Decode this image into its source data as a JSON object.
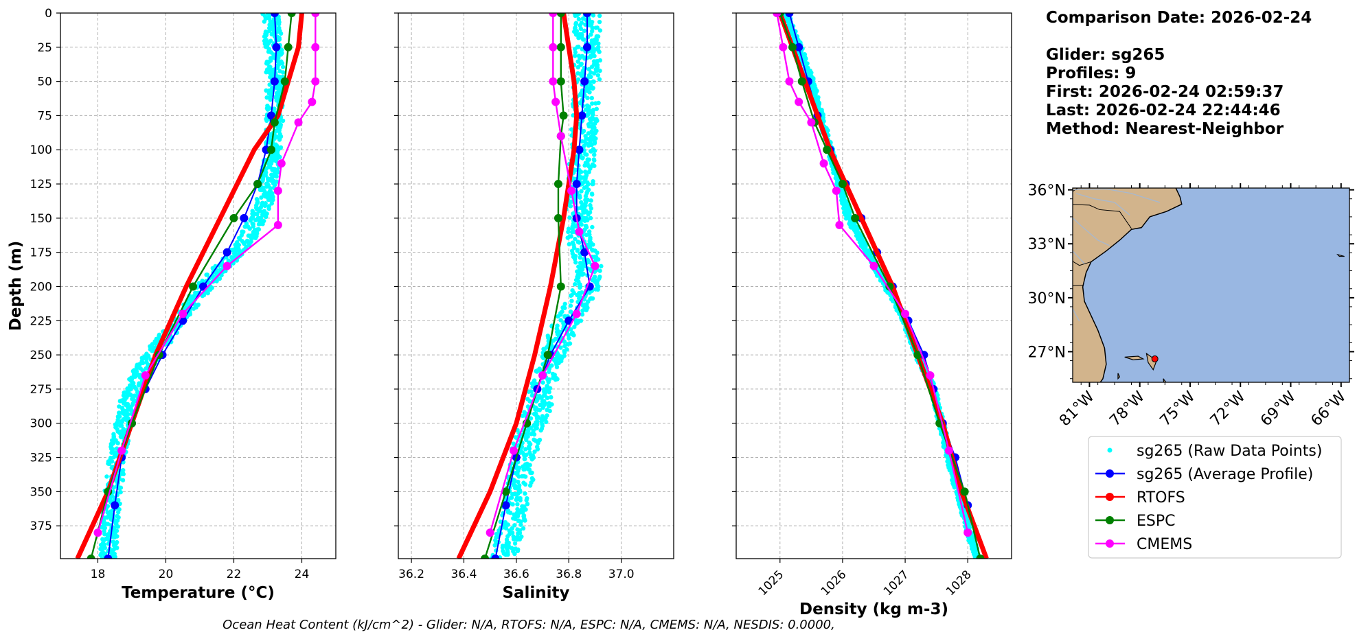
{
  "header": {
    "comparison_date": "Comparison Date: 2026-02-24",
    "glider": "Glider: sg265",
    "profiles": "Profiles: 9",
    "first": "First: 2026-02-24 02:59:37",
    "last": "Last: 2026-02-24 22:44:46",
    "method": "Method: Nearest-Neighbor"
  },
  "footer_text": "Ocean Heat Content (kJ/cm^2) - Glider: N/A,  RTOFS: N/A,  ESPC: N/A,  CMEMS: N/A,  NESDIS: 0.0000,",
  "colors": {
    "raw": "#00ffff",
    "average": "#0000ff",
    "rtofs": "#ff0000",
    "espc": "#008000",
    "cmems": "#ff00ff",
    "land": "#d2b48c",
    "ocean": "#99b7e2"
  },
  "chart_data": [
    {
      "type": "line",
      "xlabel": "Temperature (°C)",
      "ylabel": "Depth (m)",
      "xlim": [
        16.9,
        25.0
      ],
      "ylim": [
        399,
        0
      ],
      "xticks": [
        18,
        20,
        22,
        24
      ],
      "yticks": [
        0,
        25,
        50,
        75,
        100,
        125,
        150,
        175,
        200,
        225,
        250,
        275,
        300,
        325,
        350,
        375
      ],
      "grid": true,
      "series": [
        {
          "name": "sg265 (Raw Data Points)",
          "style": "raw",
          "x": [
            23.1,
            23.2,
            23.2,
            23.1,
            22.9,
            22.4,
            21.9,
            21.3,
            20.2,
            19.3,
            18.8,
            18.6,
            18.4,
            18.3
          ],
          "y": [
            0,
            40,
            80,
            110,
            140,
            165,
            180,
            195,
            230,
            260,
            290,
            320,
            360,
            399
          ],
          "spread": 0.25
        },
        {
          "name": "sg265 (Average Profile)",
          "style": "average",
          "x": [
            23.2,
            23.25,
            23.2,
            23.1,
            22.95,
            22.7,
            22.3,
            21.8,
            21.1,
            20.5,
            19.9,
            19.4,
            19.0,
            18.7,
            18.5,
            18.3
          ],
          "y": [
            0,
            25,
            50,
            75,
            100,
            125,
            150,
            175,
            200,
            225,
            250,
            275,
            300,
            325,
            360,
            399
          ]
        },
        {
          "name": "RTOFS",
          "style": "rtofs",
          "x": [
            24.0,
            23.9,
            23.6,
            23.3,
            22.6,
            21.6,
            20.6,
            19.7,
            19.0,
            18.3,
            17.4
          ],
          "y": [
            0,
            25,
            50,
            75,
            100,
            150,
            200,
            250,
            300,
            350,
            399
          ]
        },
        {
          "name": "ESPC",
          "style": "espc",
          "x": [
            23.7,
            23.6,
            23.5,
            23.2,
            23.1,
            22.7,
            22.0,
            20.8,
            19.8,
            19.0,
            18.3,
            17.8
          ],
          "y": [
            0,
            25,
            50,
            80,
            100,
            125,
            150,
            200,
            250,
            300,
            350,
            399
          ]
        },
        {
          "name": "CMEMS",
          "style": "cmems",
          "x": [
            24.4,
            24.4,
            24.4,
            24.3,
            23.9,
            23.4,
            23.3,
            23.3,
            21.8,
            20.5,
            19.4,
            18.7,
            18.0
          ],
          "y": [
            0,
            25,
            50,
            65,
            80,
            110,
            130,
            155,
            185,
            220,
            265,
            320,
            380
          ]
        }
      ]
    },
    {
      "type": "line",
      "xlabel": "Salinity",
      "ylim": [
        399,
        0
      ],
      "xlim": [
        36.15,
        37.2
      ],
      "xticks": [
        "36.2",
        "36.4",
        "36.6",
        "36.8",
        "37.0"
      ],
      "grid": true,
      "series": [
        {
          "name": "sg265 (Raw Data Points)",
          "style": "raw",
          "x": [
            36.87,
            36.87,
            36.86,
            36.85,
            36.84,
            36.84,
            36.88,
            36.86,
            36.78,
            36.72,
            36.68,
            36.63,
            36.6,
            36.55
          ],
          "y": [
            0,
            40,
            80,
            110,
            140,
            165,
            185,
            205,
            230,
            260,
            290,
            320,
            360,
            399
          ],
          "spread": 0.05
        },
        {
          "name": "sg265 (Average Profile)",
          "style": "average",
          "x": [
            36.87,
            36.87,
            36.86,
            36.85,
            36.84,
            36.83,
            36.83,
            36.86,
            36.88,
            36.8,
            36.73,
            36.68,
            36.64,
            36.6,
            36.56,
            36.52
          ],
          "y": [
            0,
            25,
            50,
            75,
            100,
            125,
            150,
            175,
            200,
            225,
            250,
            275,
            300,
            325,
            360,
            399
          ]
        },
        {
          "name": "RTOFS",
          "style": "rtofs",
          "x": [
            36.78,
            36.8,
            36.82,
            36.83,
            36.82,
            36.78,
            36.73,
            36.67,
            36.6,
            36.5,
            36.38
          ],
          "y": [
            0,
            25,
            50,
            75,
            100,
            150,
            200,
            250,
            300,
            350,
            399
          ]
        },
        {
          "name": "ESPC",
          "style": "espc",
          "x": [
            36.77,
            36.77,
            36.77,
            36.78,
            36.77,
            36.76,
            36.76,
            36.77,
            36.72,
            36.64,
            36.56,
            36.48
          ],
          "y": [
            0,
            25,
            50,
            75,
            90,
            125,
            150,
            200,
            250,
            300,
            350,
            399
          ]
        },
        {
          "name": "CMEMS",
          "style": "cmems",
          "x": [
            36.74,
            36.74,
            36.74,
            36.75,
            36.77,
            36.81,
            36.84,
            36.9,
            36.83,
            36.7,
            36.59,
            36.5
          ],
          "y": [
            0,
            25,
            50,
            65,
            90,
            130,
            160,
            185,
            220,
            265,
            320,
            380
          ]
        }
      ]
    },
    {
      "type": "line",
      "xlabel": "Density (kg m-3)",
      "ylim": [
        399,
        0
      ],
      "xlim": [
        1024.3,
        1028.7
      ],
      "xticks": [
        "1025",
        "1026",
        "1027",
        "1028"
      ],
      "xtick_rotation": 45,
      "grid": true,
      "series": [
        {
          "name": "sg265 (Raw Data Points)",
          "style": "raw",
          "x": [
            1025.1,
            1025.3,
            1025.5,
            1025.8,
            1026.1,
            1026.4,
            1026.7,
            1027.0,
            1027.2,
            1027.45,
            1027.7,
            1028.0,
            1028.15
          ],
          "y": [
            0,
            25,
            50,
            100,
            150,
            175,
            200,
            225,
            250,
            275,
            325,
            375,
            399
          ],
          "spread": 0.05
        },
        {
          "name": "sg265 (Average Profile)",
          "style": "average",
          "x": [
            1025.15,
            1025.3,
            1025.45,
            1025.6,
            1025.8,
            1026.05,
            1026.3,
            1026.55,
            1026.8,
            1027.05,
            1027.3,
            1027.45,
            1027.6,
            1027.8,
            1028.0,
            1028.2
          ],
          "y": [
            0,
            25,
            50,
            75,
            100,
            125,
            150,
            175,
            200,
            225,
            250,
            275,
            300,
            325,
            360,
            399
          ]
        },
        {
          "name": "RTOFS",
          "style": "rtofs",
          "x": [
            1025.0,
            1025.2,
            1025.4,
            1025.8,
            1026.3,
            1026.8,
            1027.2,
            1027.6,
            1027.9,
            1028.3
          ],
          "y": [
            0,
            25,
            50,
            100,
            150,
            200,
            250,
            300,
            350,
            399
          ]
        },
        {
          "name": "ESPC",
          "style": "espc",
          "x": [
            1025.0,
            1025.2,
            1025.35,
            1025.55,
            1025.75,
            1026.0,
            1026.2,
            1026.75,
            1027.2,
            1027.55,
            1027.95,
            1028.2
          ],
          "y": [
            0,
            25,
            50,
            80,
            100,
            125,
            150,
            200,
            250,
            300,
            350,
            399
          ]
        },
        {
          "name": "CMEMS",
          "style": "cmems",
          "x": [
            1024.95,
            1025.05,
            1025.15,
            1025.3,
            1025.5,
            1025.7,
            1025.9,
            1025.95,
            1026.5,
            1027.0,
            1027.4,
            1027.7,
            1028.0
          ],
          "y": [
            0,
            25,
            50,
            65,
            80,
            110,
            130,
            155,
            185,
            220,
            265,
            320,
            380
          ]
        }
      ]
    }
  ],
  "map": {
    "lat_labels": [
      "36°N",
      "33°N",
      "30°N",
      "27°N"
    ],
    "lat_values": [
      36,
      33,
      30,
      27
    ],
    "lon_labels": [
      "81°W",
      "78°W",
      "75°W",
      "72°W",
      "69°W",
      "66°W"
    ],
    "lon_values": [
      -81,
      -78,
      -75,
      -72,
      -69,
      -66
    ],
    "lat_range": [
      25.3,
      36.1
    ],
    "lon_range": [
      -82.0,
      -65.5
    ],
    "glider_position": {
      "lat": 26.6,
      "lon": -77.1
    }
  },
  "legend": {
    "entries": [
      {
        "label": "sg265 (Raw Data Points)",
        "style": "raw"
      },
      {
        "label": "sg265 (Average Profile)",
        "style": "average"
      },
      {
        "label": "RTOFS",
        "style": "rtofs"
      },
      {
        "label": "ESPC",
        "style": "espc"
      },
      {
        "label": "CMEMS",
        "style": "cmems"
      }
    ]
  }
}
